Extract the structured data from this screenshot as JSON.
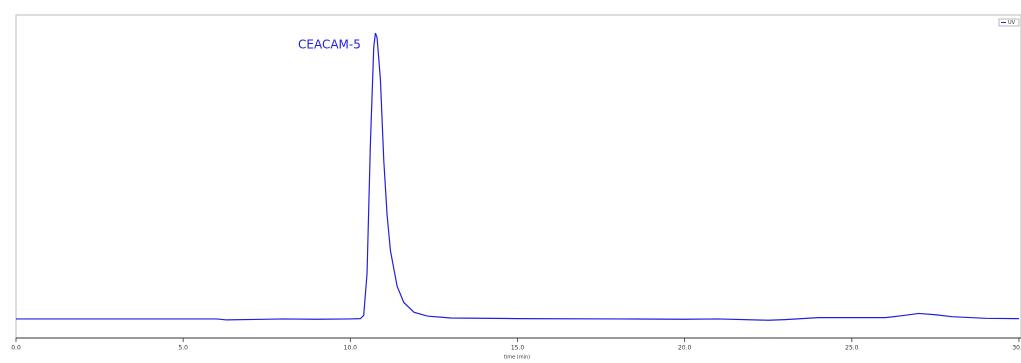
{
  "chart_data": {
    "type": "line",
    "annotation": "CEACAM-5",
    "x_label": "time (min)",
    "xlim": [
      0,
      30
    ],
    "xticks": [
      {
        "value": 0,
        "label": "0.0"
      },
      {
        "value": 5,
        "label": "5.0"
      },
      {
        "value": 10,
        "label": "10.0"
      },
      {
        "value": 15,
        "label": "15.0"
      },
      {
        "value": 20,
        "label": "20.0"
      },
      {
        "value": 25,
        "label": "25.0"
      },
      {
        "value": 30,
        "label": "30.0"
      }
    ],
    "ylim": [
      0,
      100
    ],
    "series": [
      {
        "name": "UV",
        "color": "#2020e0",
        "x": [
          0,
          2,
          4,
          6,
          6.3,
          8,
          9,
          10,
          10.3,
          10.4,
          10.5,
          10.6,
          10.7,
          10.75,
          10.8,
          10.9,
          11.0,
          11.1,
          11.2,
          11.4,
          11.6,
          11.9,
          12.3,
          13,
          15,
          18,
          20,
          21,
          22.5,
          23,
          24,
          25,
          26,
          26.5,
          27,
          27.5,
          28,
          29,
          30
        ],
        "values": [
          5.9,
          5.9,
          5.9,
          5.9,
          5.6,
          5.9,
          5.8,
          5.9,
          6.0,
          7,
          20,
          60,
          90,
          94.4,
          93,
          80,
          55,
          38,
          27,
          16,
          11,
          8,
          6.8,
          6.2,
          6.0,
          5.9,
          5.8,
          5.9,
          5.5,
          5.7,
          6.3,
          6.3,
          6.3,
          6.9,
          7.6,
          7.2,
          6.6,
          6.1,
          6.0
        ]
      }
    ]
  }
}
